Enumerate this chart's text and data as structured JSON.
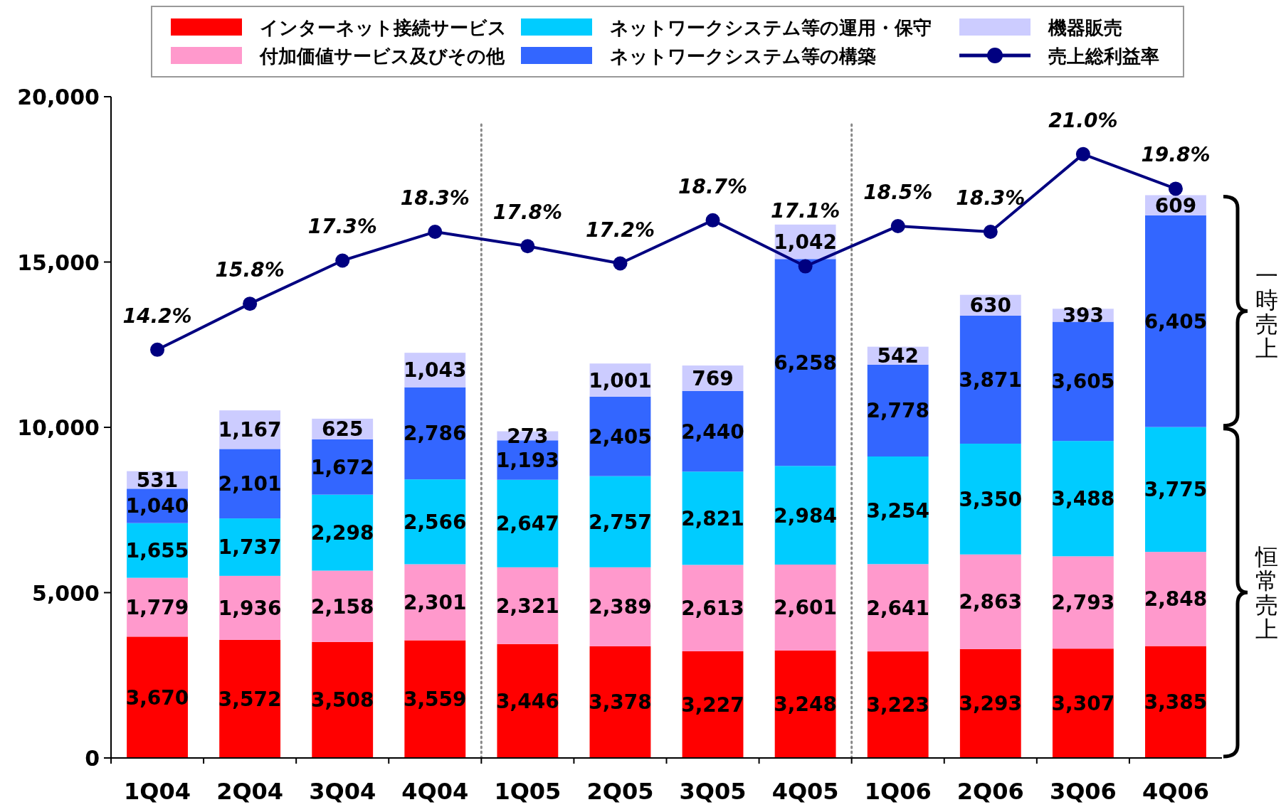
{
  "chart_data": {
    "type": "bar",
    "stacked": true,
    "categories": [
      "1Q04",
      "2Q04",
      "3Q04",
      "4Q04",
      "1Q05",
      "2Q05",
      "3Q05",
      "4Q05",
      "1Q06",
      "2Q06",
      "3Q06",
      "4Q06"
    ],
    "series": [
      {
        "name": "インターネット接続サービス",
        "color": "#ff0000",
        "values": [
          3670,
          3572,
          3508,
          3559,
          3446,
          3378,
          3227,
          3248,
          3223,
          3293,
          3307,
          3385
        ],
        "value_labels": [
          "3,670",
          "3,572",
          "3,508",
          "3,559",
          "3,446",
          "3,378",
          "3,227",
          "3,248",
          "3,223",
          "3,293",
          "3,307",
          "3,385"
        ]
      },
      {
        "name": "付加価値サービス及びその他",
        "color": "#ff99cc",
        "values": [
          1779,
          1936,
          2158,
          2301,
          2321,
          2389,
          2613,
          2601,
          2641,
          2863,
          2793,
          2848
        ],
        "value_labels": [
          "1,779",
          "1,936",
          "2,158",
          "2,301",
          "2,321",
          "2,389",
          "2,613",
          "2,601",
          "2,641",
          "2,863",
          "2,793",
          "2,848"
        ]
      },
      {
        "name": "ネットワークシステム等の運用・保守",
        "color": "#00ccff",
        "values": [
          1655,
          1737,
          2298,
          2566,
          2647,
          2757,
          2821,
          2984,
          3254,
          3350,
          3488,
          3775
        ],
        "value_labels": [
          "1,655",
          "1,737",
          "2,298",
          "2,566",
          "2,647",
          "2,757",
          "2,821",
          "2,984",
          "3,254",
          "3,350",
          "3,488",
          "3,775"
        ]
      },
      {
        "name": "ネットワークシステム等の構築",
        "color": "#3366ff",
        "values": [
          1040,
          2101,
          1672,
          2786,
          1193,
          2405,
          2440,
          6258,
          2778,
          3871,
          3605,
          6405
        ],
        "value_labels": [
          "1,040",
          "2,101",
          "1,672",
          "2,786",
          "1,193",
          "2,405",
          "2,440",
          "6,258",
          "2,778",
          "3,871",
          "3,605",
          "6,405"
        ]
      },
      {
        "name": "機器販売",
        "color": "#ccccff",
        "values": [
          531,
          1167,
          625,
          1043,
          273,
          1001,
          769,
          1042,
          542,
          630,
          393,
          609
        ],
        "value_labels": [
          "531",
          "1,167",
          "625",
          "1,043",
          "273",
          "1,001",
          "769",
          "1,042",
          "542",
          "630",
          "393",
          "609"
        ]
      },
      {
        "name": "売上総利益率",
        "type": "line",
        "axis": "y2",
        "color": "#000080",
        "marker": "circle",
        "values": [
          14.2,
          15.8,
          17.3,
          18.3,
          17.8,
          17.2,
          18.7,
          17.1,
          18.5,
          18.3,
          21.0,
          19.8
        ],
        "value_labels": [
          "14.2%",
          "15.8%",
          "17.3%",
          "18.3%",
          "17.8%",
          "17.2%",
          "18.7%",
          "17.1%",
          "18.5%",
          "18.3%",
          "21.0%",
          "19.8%"
        ]
      }
    ],
    "ylim": [
      0,
      20000
    ],
    "yticks": [
      0,
      {
        "value": 5000,
        "label": "5,000"
      },
      {
        "value": 10000,
        "label": "10,000"
      },
      {
        "value": 15000,
        "label": "15,000"
      },
      {
        "value": 20000,
        "label": "20,000"
      }
    ],
    "y2lim": [
      0,
      23
    ],
    "annotations": [
      "一時売上",
      "恒常売上"
    ],
    "legend": "top",
    "grid": false
  }
}
